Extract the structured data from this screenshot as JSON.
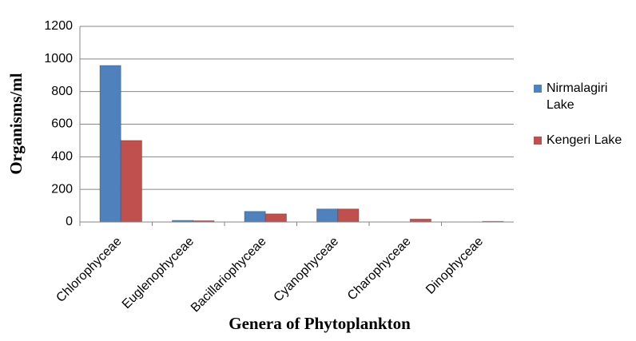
{
  "chart_data": {
    "type": "bar",
    "x_label": "Genera of Phytoplankton",
    "y_label": "Organisms/ml",
    "categories": [
      "Chlorophyceae",
      "Euglenophyceae",
      "Bacillariophyceae",
      "Cyanophyceae",
      "Charophyceae",
      "Dinophyceae"
    ],
    "series": [
      {
        "name": "Nirmalagiri Lake",
        "color": "#4f81bd",
        "values": [
          960,
          10,
          65,
          80,
          0,
          0
        ]
      },
      {
        "name": "Kengeri Lake",
        "color": "#c0504d",
        "values": [
          500,
          8,
          50,
          80,
          18,
          4
        ]
      }
    ],
    "ylim": [
      0,
      1200
    ],
    "yticks": [
      0,
      200,
      400,
      600,
      800,
      1000,
      1200
    ],
    "grid": true,
    "legend": "right"
  }
}
